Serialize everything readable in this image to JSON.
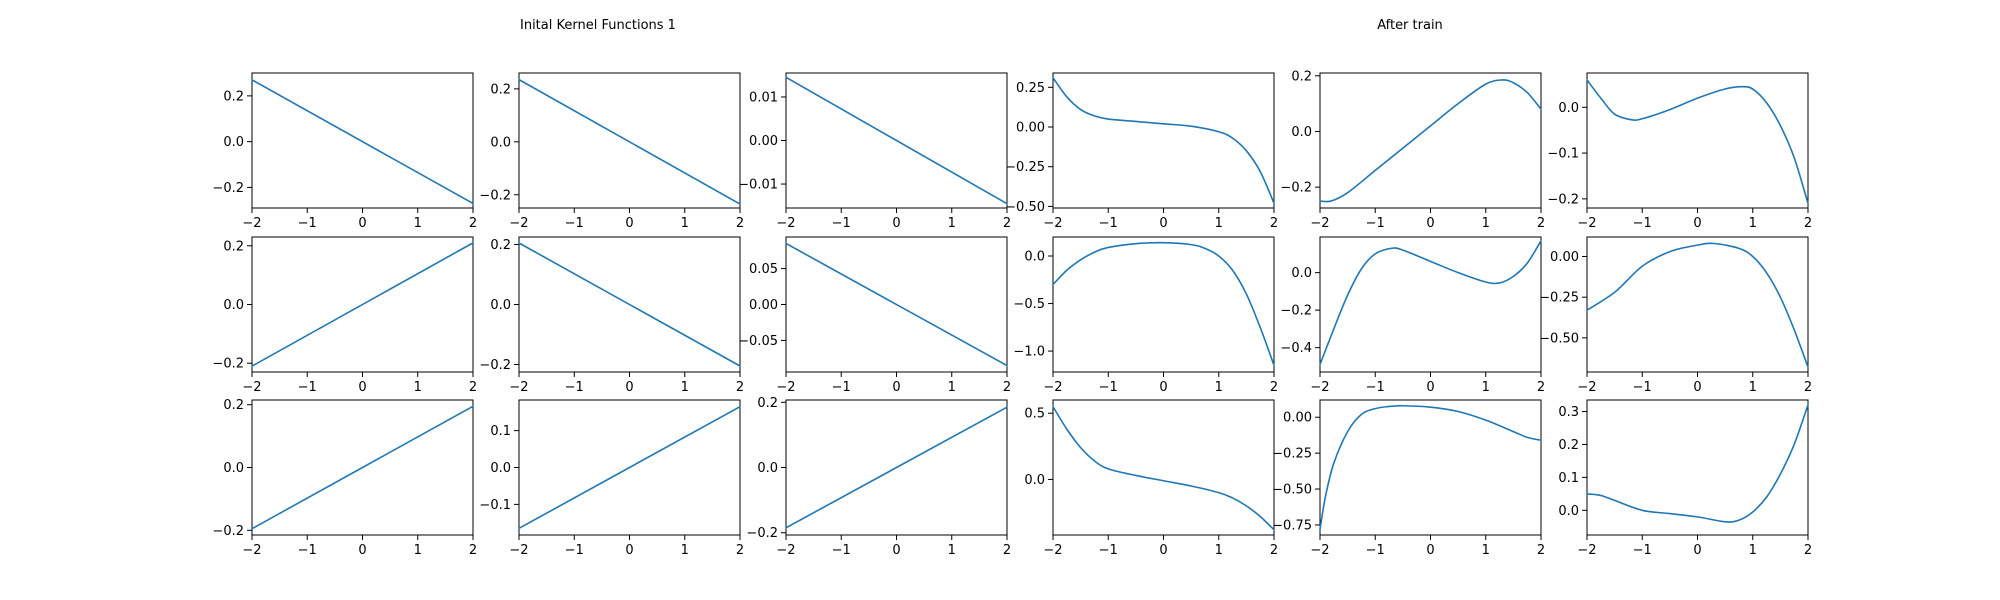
{
  "figure": {
    "titles": [
      "Inital Kernel Functions 1",
      "After train"
    ],
    "line_color": "#1f77b4"
  },
  "chart_data": [
    {
      "type": "line",
      "panel": "row1-col1",
      "xlim": [
        -2,
        2
      ],
      "ylim": [
        -0.29,
        0.3
      ],
      "xticks": [
        -2,
        -1,
        0,
        1,
        2
      ],
      "xtick_labels": [
        "−2",
        "−1",
        "0",
        "1",
        "2"
      ],
      "yticks": [
        0.2,
        0.0,
        -0.2
      ],
      "ytick_labels": [
        "0.2",
        "0.0",
        "−0.2"
      ],
      "x": [
        -2,
        2
      ],
      "y": [
        0.27,
        -0.27
      ]
    },
    {
      "type": "line",
      "panel": "row1-col2",
      "xlim": [
        -2,
        2
      ],
      "ylim": [
        -0.25,
        0.26
      ],
      "xticks": [
        -2,
        -1,
        0,
        1,
        2
      ],
      "xtick_labels": [
        "−2",
        "−1",
        "0",
        "1",
        "2"
      ],
      "yticks": [
        0.2,
        0.0,
        -0.2
      ],
      "ytick_labels": [
        "0.2",
        "0.0",
        "−0.2"
      ],
      "x": [
        -2,
        2
      ],
      "y": [
        0.235,
        -0.235
      ]
    },
    {
      "type": "line",
      "panel": "row1-col3",
      "xlim": [
        -2,
        2
      ],
      "ylim": [
        -0.0155,
        0.0155
      ],
      "xticks": [
        -2,
        -1,
        0,
        1,
        2
      ],
      "xtick_labels": [
        "−2",
        "−1",
        "0",
        "1",
        "2"
      ],
      "yticks": [
        0.01,
        0.0,
        -0.01
      ],
      "ytick_labels": [
        "0.01",
        "0.00",
        "−0.01"
      ],
      "x": [
        -2,
        2
      ],
      "y": [
        0.0145,
        -0.0145
      ]
    },
    {
      "type": "line",
      "panel": "row1-col4",
      "xlim": [
        -2,
        2
      ],
      "ylim": [
        -0.51,
        0.34
      ],
      "xticks": [
        -2,
        -1,
        0,
        1,
        2
      ],
      "xtick_labels": [
        "−2",
        "−1",
        "0",
        "1",
        "2"
      ],
      "yticks": [
        0.25,
        0.0,
        -0.25,
        -0.5
      ],
      "ytick_labels": [
        "0.25",
        "0.00",
        "−0.25",
        "−0.50"
      ],
      "x": [
        -2,
        -1.75,
        -1.5,
        -1.25,
        -1,
        -0.5,
        0,
        0.5,
        1,
        1.25,
        1.5,
        1.75,
        2
      ],
      "y": [
        0.31,
        0.19,
        0.11,
        0.07,
        0.05,
        0.035,
        0.02,
        0.005,
        -0.03,
        -0.07,
        -0.15,
        -0.28,
        -0.48
      ]
    },
    {
      "type": "line",
      "panel": "row1-col5",
      "xlim": [
        -2,
        2
      ],
      "ylim": [
        -0.275,
        0.21
      ],
      "xticks": [
        -2,
        -1,
        0,
        1,
        2
      ],
      "xtick_labels": [
        "−2",
        "−1",
        "0",
        "1",
        "2"
      ],
      "yticks": [
        0.2,
        0.0,
        -0.2
      ],
      "ytick_labels": [
        "0.2",
        "0.0",
        "−0.2"
      ],
      "x": [
        -2,
        -1.8,
        -1.5,
        -1,
        -0.5,
        0,
        0.5,
        1,
        1.3,
        1.5,
        1.75,
        2
      ],
      "y": [
        -0.25,
        -0.25,
        -0.22,
        -0.14,
        -0.06,
        0.02,
        0.1,
        0.17,
        0.185,
        0.175,
        0.14,
        0.08
      ]
    },
    {
      "type": "line",
      "panel": "row1-col6",
      "xlim": [
        -2,
        2
      ],
      "ylim": [
        -0.22,
        0.075
      ],
      "xticks": [
        -2,
        -1,
        0,
        1,
        2
      ],
      "xtick_labels": [
        "−2",
        "−1",
        "0",
        "1",
        "2"
      ],
      "yticks": [
        0.0,
        -0.1,
        -0.2
      ],
      "ytick_labels": [
        "0.0",
        "−0.1",
        "−0.2"
      ],
      "x": [
        -2,
        -1.75,
        -1.5,
        -1.2,
        -1,
        -0.5,
        0,
        0.5,
        0.8,
        1,
        1.25,
        1.5,
        1.75,
        2
      ],
      "y": [
        0.06,
        0.02,
        -0.015,
        -0.027,
        -0.025,
        -0.005,
        0.02,
        0.04,
        0.045,
        0.04,
        0.01,
        -0.04,
        -0.11,
        -0.21
      ]
    },
    {
      "type": "line",
      "panel": "row2-col1",
      "xlim": [
        -2,
        2
      ],
      "ylim": [
        -0.23,
        0.23
      ],
      "xticks": [
        -2,
        -1,
        0,
        1,
        2
      ],
      "xtick_labels": [
        "−2",
        "−1",
        "0",
        "1",
        "2"
      ],
      "yticks": [
        0.2,
        0.0,
        -0.2
      ],
      "ytick_labels": [
        "0.2",
        "0.0",
        "−0.2"
      ],
      "x": [
        -2,
        2
      ],
      "y": [
        -0.21,
        0.21
      ]
    },
    {
      "type": "line",
      "panel": "row2-col2",
      "xlim": [
        -2,
        2
      ],
      "ylim": [
        -0.225,
        0.225
      ],
      "xticks": [
        -2,
        -1,
        0,
        1,
        2
      ],
      "xtick_labels": [
        "−2",
        "−1",
        "0",
        "1",
        "2"
      ],
      "yticks": [
        0.2,
        0.0,
        -0.2
      ],
      "ytick_labels": [
        "0.2",
        "0.0",
        "−0.2"
      ],
      "x": [
        -2,
        2
      ],
      "y": [
        0.205,
        -0.205
      ]
    },
    {
      "type": "line",
      "panel": "row2-col3",
      "xlim": [
        -2,
        2
      ],
      "ylim": [
        -0.094,
        0.094
      ],
      "xticks": [
        -2,
        -1,
        0,
        1,
        2
      ],
      "xtick_labels": [
        "−2",
        "−1",
        "0",
        "1",
        "2"
      ],
      "yticks": [
        0.05,
        0.0,
        -0.05
      ],
      "ytick_labels": [
        "0.05",
        "0.00",
        "−0.05"
      ],
      "x": [
        -2,
        2
      ],
      "y": [
        0.085,
        -0.085
      ]
    },
    {
      "type": "line",
      "panel": "row2-col4",
      "xlim": [
        -2,
        2
      ],
      "ylim": [
        -1.22,
        0.2
      ],
      "xticks": [
        -2,
        -1,
        0,
        1,
        2
      ],
      "xtick_labels": [
        "−2",
        "−1",
        "0",
        "1",
        "2"
      ],
      "yticks": [
        0.0,
        -0.5,
        -1.0
      ],
      "ytick_labels": [
        "0.0",
        "−0.5",
        "−1.0"
      ],
      "x": [
        -2,
        -1.75,
        -1.5,
        -1.25,
        -1,
        -0.5,
        0,
        0.5,
        0.75,
        1,
        1.25,
        1.5,
        1.75,
        2
      ],
      "y": [
        -0.3,
        -0.15,
        -0.04,
        0.04,
        0.09,
        0.13,
        0.14,
        0.12,
        0.08,
        0.0,
        -0.15,
        -0.4,
        -0.75,
        -1.15
      ]
    },
    {
      "type": "line",
      "panel": "row2-col5",
      "xlim": [
        -2,
        2
      ],
      "ylim": [
        -0.53,
        0.19
      ],
      "xticks": [
        -2,
        -1,
        0,
        1,
        2
      ],
      "xtick_labels": [
        "−2",
        "−1",
        "0",
        "1",
        "2"
      ],
      "yticks": [
        0.0,
        -0.2,
        -0.4
      ],
      "ytick_labels": [
        "0.0",
        "−0.2",
        "−0.4"
      ],
      "x": [
        -2,
        -1.75,
        -1.5,
        -1.25,
        -1,
        -0.7,
        -0.5,
        0,
        0.5,
        1,
        1.25,
        1.5,
        1.75,
        2
      ],
      "y": [
        -0.49,
        -0.3,
        -0.12,
        0.02,
        0.1,
        0.13,
        0.12,
        0.06,
        0.0,
        -0.05,
        -0.055,
        -0.02,
        0.05,
        0.17
      ]
    },
    {
      "type": "line",
      "panel": "row2-col6",
      "xlim": [
        -2,
        2
      ],
      "ylim": [
        -0.71,
        0.12
      ],
      "xticks": [
        -2,
        -1,
        0,
        1,
        2
      ],
      "xtick_labels": [
        "−2",
        "−1",
        "0",
        "1",
        "2"
      ],
      "yticks": [
        0.0,
        -0.25,
        -0.5
      ],
      "ytick_labels": [
        "0.00",
        "−0.25",
        "−0.50"
      ],
      "x": [
        -2,
        -1.5,
        -1,
        -0.5,
        0,
        0.3,
        0.75,
        1,
        1.25,
        1.5,
        1.75,
        2
      ],
      "y": [
        -0.33,
        -0.22,
        -0.06,
        0.03,
        0.07,
        0.08,
        0.05,
        0.0,
        -0.1,
        -0.25,
        -0.45,
        -0.68
      ]
    },
    {
      "type": "line",
      "panel": "row3-col1",
      "xlim": [
        -2,
        2
      ],
      "ylim": [
        -0.215,
        0.215
      ],
      "xticks": [
        -2,
        -1,
        0,
        1,
        2
      ],
      "xtick_labels": [
        "−2",
        "−1",
        "0",
        "1",
        "2"
      ],
      "yticks": [
        0.2,
        0.0,
        -0.2
      ],
      "ytick_labels": [
        "0.2",
        "0.0",
        "−0.2"
      ],
      "x": [
        -2,
        2
      ],
      "y": [
        -0.195,
        0.195
      ]
    },
    {
      "type": "line",
      "panel": "row3-col2",
      "xlim": [
        -2,
        2
      ],
      "ylim": [
        -0.183,
        0.183
      ],
      "xticks": [
        -2,
        -1,
        0,
        1,
        2
      ],
      "xtick_labels": [
        "−2",
        "−1",
        "0",
        "1",
        "2"
      ],
      "yticks": [
        0.1,
        0.0,
        -0.1
      ],
      "ytick_labels": [
        "0.1",
        "0.0",
        "−0.1"
      ],
      "x": [
        -2,
        2
      ],
      "y": [
        -0.165,
        0.165
      ]
    },
    {
      "type": "line",
      "panel": "row3-col3",
      "xlim": [
        -2,
        2
      ],
      "ylim": [
        -0.207,
        0.207
      ],
      "xticks": [
        -2,
        -1,
        0,
        1,
        2
      ],
      "xtick_labels": [
        "−2",
        "−1",
        "0",
        "1",
        "2"
      ],
      "yticks": [
        0.2,
        0.0,
        -0.2
      ],
      "ytick_labels": [
        "0.2",
        "0.0",
        "−0.2"
      ],
      "x": [
        -2,
        2
      ],
      "y": [
        -0.185,
        0.185
      ]
    },
    {
      "type": "line",
      "panel": "row3-col4",
      "xlim": [
        -2,
        2
      ],
      "ylim": [
        -0.42,
        0.6
      ],
      "xticks": [
        -2,
        -1,
        0,
        1,
        2
      ],
      "xtick_labels": [
        "−2",
        "−1",
        "0",
        "1",
        "2"
      ],
      "yticks": [
        0.5,
        0.0
      ],
      "ytick_labels": [
        "0.5",
        "0.0"
      ],
      "x": [
        -2,
        -1.75,
        -1.5,
        -1.25,
        -1,
        -0.5,
        0,
        0.5,
        1,
        1.25,
        1.5,
        1.75,
        2
      ],
      "y": [
        0.55,
        0.38,
        0.24,
        0.14,
        0.08,
        0.03,
        -0.01,
        -0.05,
        -0.1,
        -0.14,
        -0.2,
        -0.28,
        -0.38
      ]
    },
    {
      "type": "line",
      "panel": "row3-col5",
      "xlim": [
        -2,
        2
      ],
      "ylim": [
        -0.82,
        0.12
      ],
      "xticks": [
        -2,
        -1,
        0,
        1,
        2
      ],
      "xtick_labels": [
        "−2",
        "−1",
        "0",
        "1",
        "2"
      ],
      "yticks": [
        0.0,
        -0.25,
        -0.5,
        -0.75
      ],
      "ytick_labels": [
        "0.00",
        "−0.25",
        "−0.50",
        "−0.75"
      ],
      "x": [
        -2,
        -1.9,
        -1.75,
        -1.5,
        -1.25,
        -1,
        -0.75,
        -0.5,
        0,
        0.5,
        1,
        1.5,
        1.75,
        2
      ],
      "y": [
        -0.78,
        -0.55,
        -0.32,
        -0.1,
        0.02,
        0.06,
        0.075,
        0.08,
        0.07,
        0.04,
        -0.02,
        -0.1,
        -0.14,
        -0.16
      ]
    },
    {
      "type": "line",
      "panel": "row3-col6",
      "xlim": [
        -2,
        2
      ],
      "ylim": [
        -0.075,
        0.335
      ],
      "xticks": [
        -2,
        -1,
        0,
        1,
        2
      ],
      "xtick_labels": [
        "−2",
        "−1",
        "0",
        "1",
        "2"
      ],
      "yticks": [
        0.3,
        0.2,
        0.1,
        0.0
      ],
      "ytick_labels": [
        "0.3",
        "0.2",
        "0.1",
        "0.0"
      ],
      "x": [
        -2,
        -1.75,
        -1.5,
        -1,
        -0.5,
        0,
        0.5,
        0.75,
        1,
        1.25,
        1.5,
        1.75,
        2
      ],
      "y": [
        0.05,
        0.045,
        0.03,
        0.0,
        -0.01,
        -0.02,
        -0.035,
        -0.03,
        -0.005,
        0.04,
        0.11,
        0.2,
        0.32
      ]
    }
  ]
}
